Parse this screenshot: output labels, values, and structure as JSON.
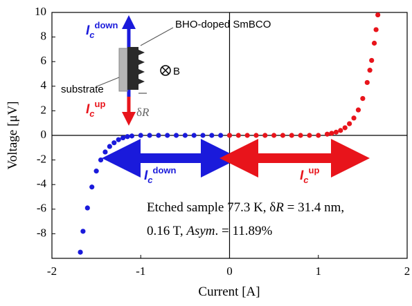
{
  "chart_data": {
    "type": "scatter",
    "x_label": "Current [A]",
    "y_label": "Voltage [μV]",
    "xlim": [
      -2,
      2
    ],
    "xticks": [
      -2,
      -1,
      0,
      1,
      2
    ],
    "ylim": [
      -10,
      10
    ],
    "yticks": [
      -8,
      -6,
      -4,
      -2,
      0,
      2,
      4,
      6,
      8,
      10
    ],
    "series": [
      {
        "color": "#1a1adb",
        "x": [
          -1.68,
          -1.65,
          -1.6,
          -1.55,
          -1.5,
          -1.45,
          -1.4,
          -1.35,
          -1.3,
          -1.25,
          -1.2,
          -1.15,
          -1.1,
          -1.0,
          -0.9,
          -0.8,
          -0.7,
          -0.6,
          -0.5,
          -0.4,
          -0.3,
          -0.2,
          -0.1,
          0
        ],
        "values": [
          -9.5,
          -7.8,
          -5.9,
          -4.2,
          -2.9,
          -2.0,
          -1.35,
          -0.9,
          -0.6,
          -0.35,
          -0.2,
          -0.1,
          -0.05,
          0,
          0,
          0,
          0,
          0,
          0,
          0,
          0,
          0,
          0,
          0
        ]
      },
      {
        "color": "#e8141b",
        "x": [
          0,
          0.1,
          0.2,
          0.3,
          0.4,
          0.5,
          0.6,
          0.7,
          0.8,
          0.9,
          1.0,
          1.1,
          1.15,
          1.2,
          1.25,
          1.3,
          1.35,
          1.4,
          1.45,
          1.5,
          1.55,
          1.58,
          1.6,
          1.63,
          1.65,
          1.67
        ],
        "values": [
          0,
          0,
          0,
          0,
          0,
          0,
          0,
          0,
          0,
          0,
          0,
          0.1,
          0.17,
          0.26,
          0.4,
          0.62,
          0.95,
          1.41,
          2.07,
          3.0,
          4.3,
          5.3,
          6.1,
          7.5,
          8.6,
          9.8
        ]
      }
    ],
    "annotation": {
      "lines": [
        [
          "Etched sample 77.3 K,  δ",
          "R",
          " = 31.4 nm,"
        ],
        [
          "0.16 T,  ",
          "Asym",
          ". = 11.89%"
        ]
      ]
    },
    "arrow_labels": [
      {
        "main": "I",
        "sub": "c",
        "sup": "down"
      },
      {
        "main": "I",
        "sub": "c",
        "sup": "up"
      }
    ],
    "inset": {
      "material": "BHO-doped SmBCO",
      "substrate": "substrate",
      "field": "B",
      "width": [
        "δ",
        "R"
      ],
      "labels": [
        {
          "main": "I",
          "sub": "c",
          "sup": "down"
        },
        {
          "main": "I",
          "sub": "c",
          "sup": "up"
        }
      ]
    }
  }
}
